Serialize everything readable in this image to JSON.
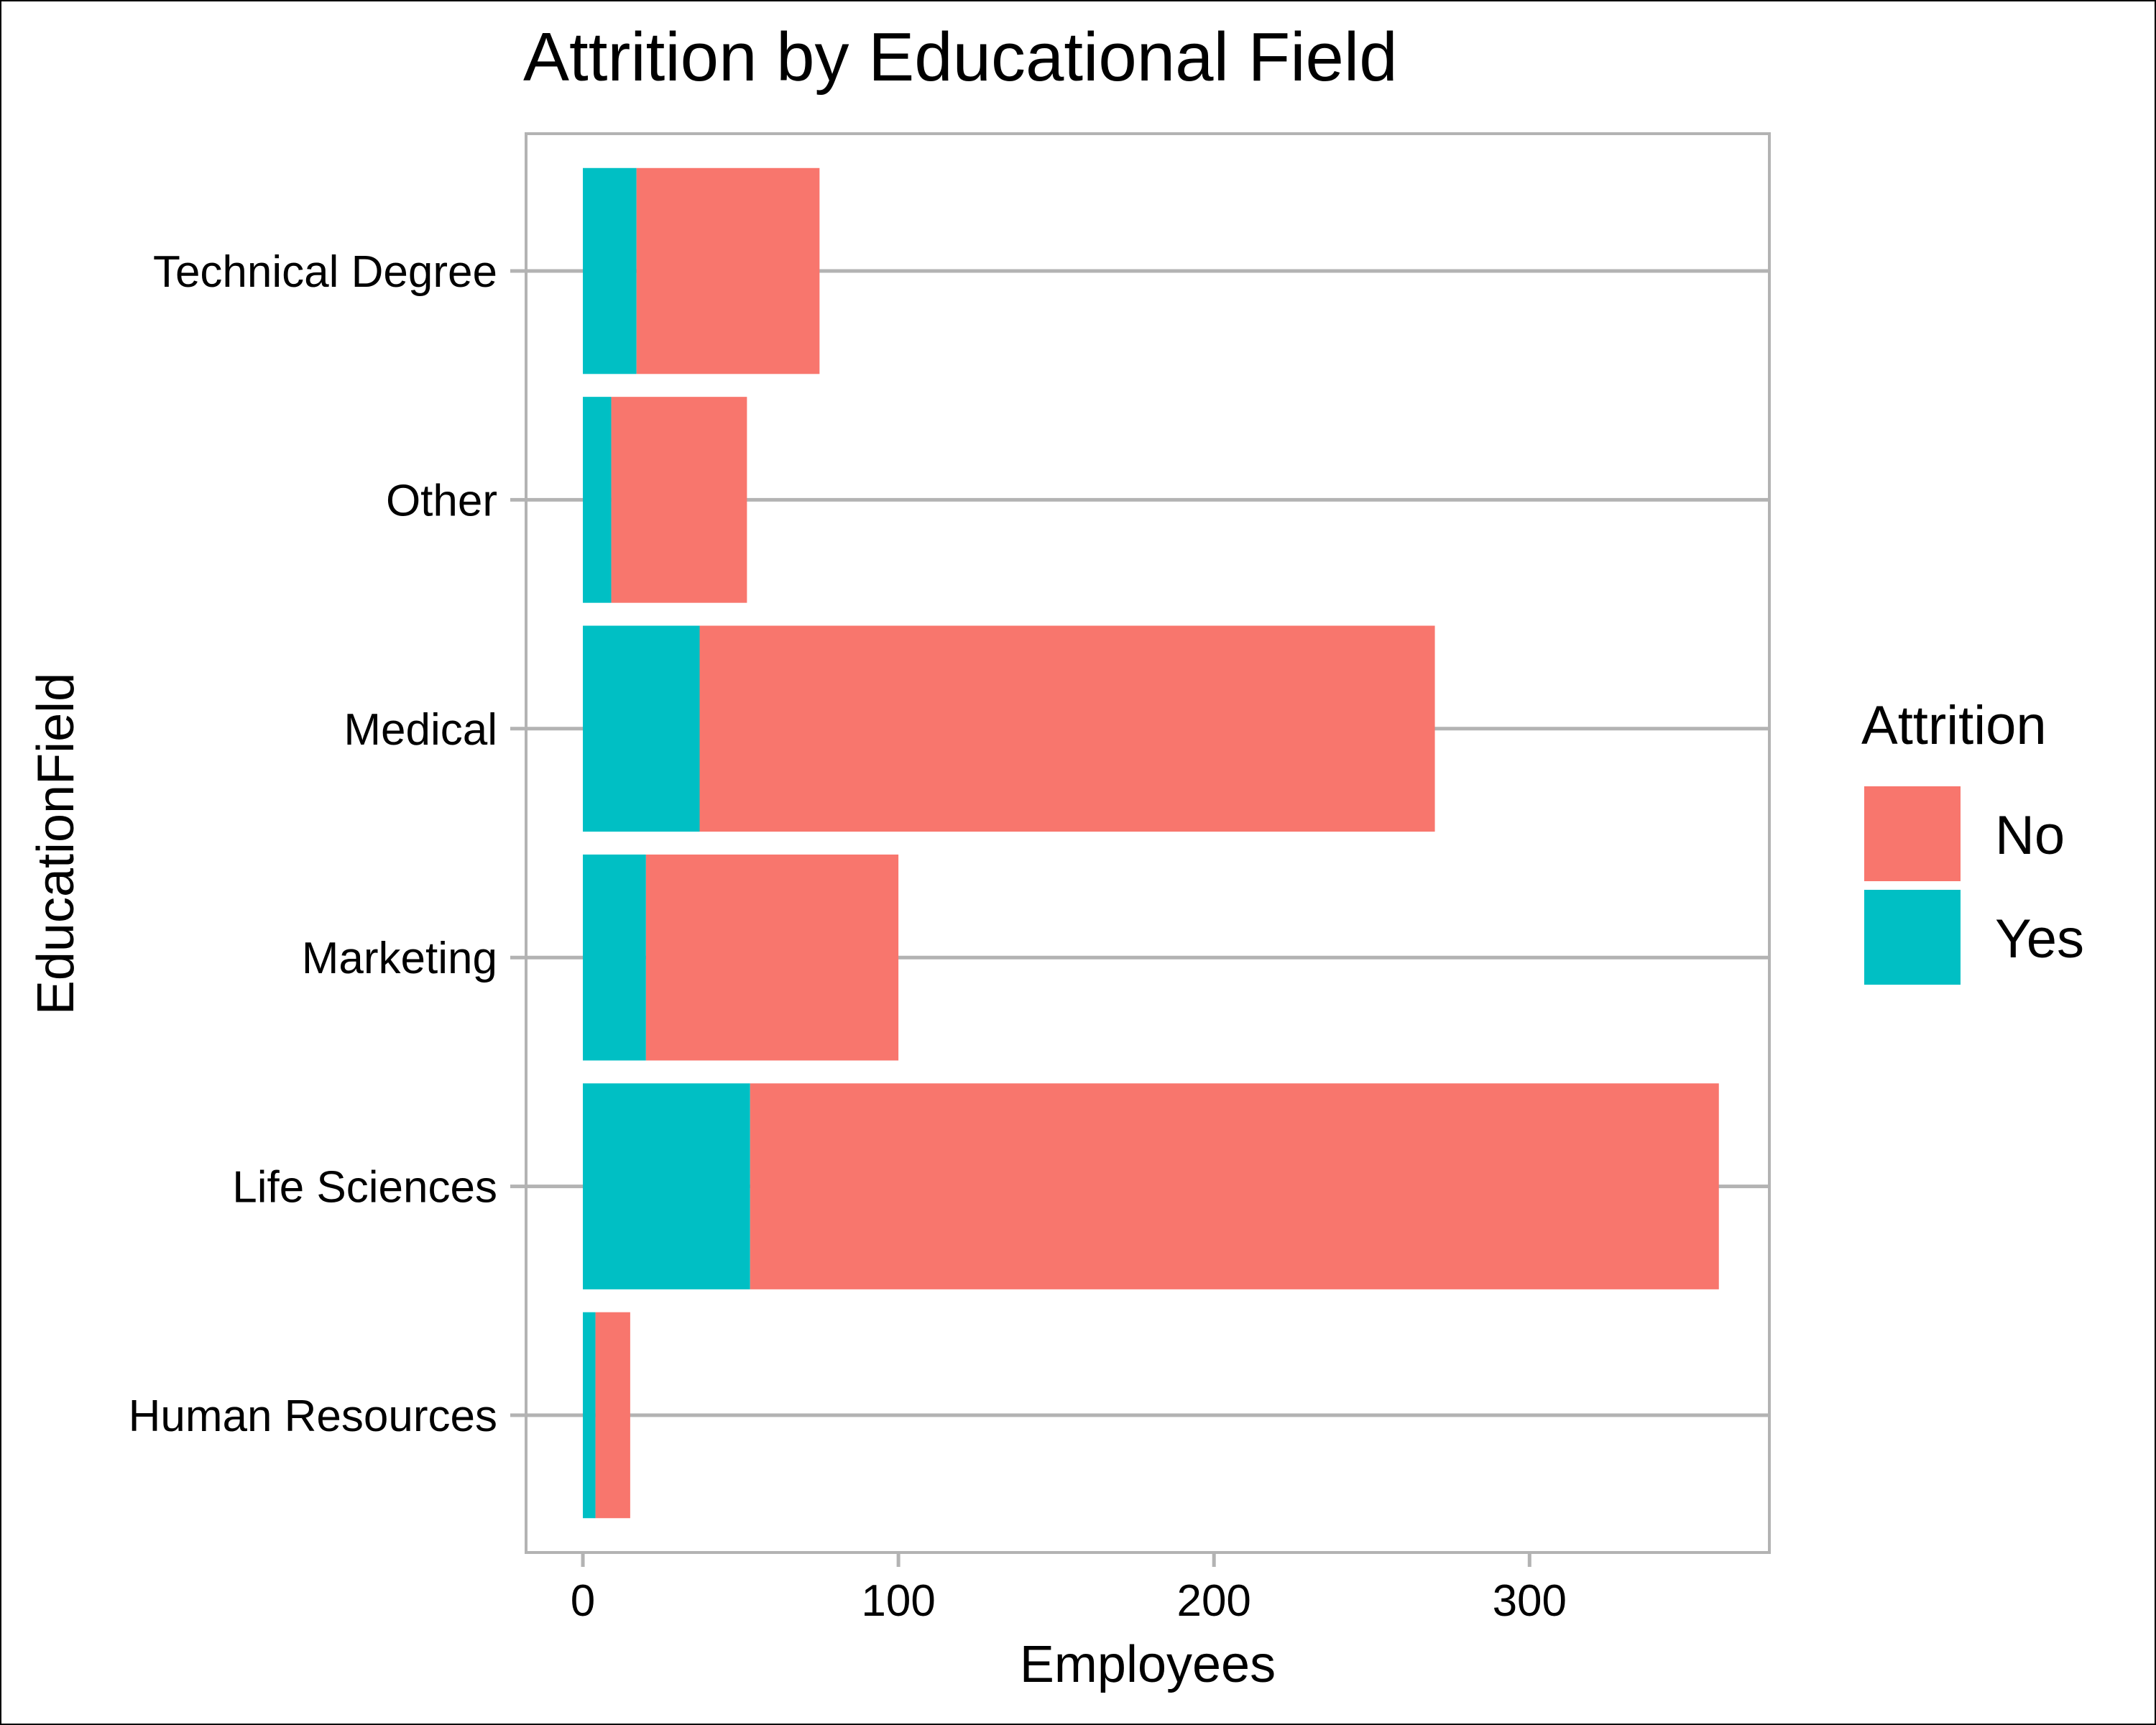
{
  "chart_data": {
    "type": "bar",
    "orientation": "horizontal",
    "stacked": true,
    "title": "Attrition by Educational Field",
    "xlabel": "Employees",
    "ylabel": "EducationField",
    "categories": [
      "Human Resources",
      "Life Sciences",
      "Marketing",
      "Medical",
      "Other",
      "Technical Degree"
    ],
    "series": [
      {
        "name": "Yes",
        "values": [
          4,
          53,
          20,
          37,
          9,
          17
        ],
        "color": "#00BFC4"
      },
      {
        "name": "No",
        "values": [
          11,
          307,
          80,
          233,
          43,
          58
        ],
        "color": "#F8766D"
      }
    ],
    "xlim": [
      -18,
      376
    ],
    "xticks": [
      0,
      100,
      200,
      300
    ],
    "xtick_labels": [
      "0",
      "100",
      "200",
      "300"
    ],
    "grid": "horizontal major lines",
    "legend": {
      "title": "Attrition",
      "position": "right",
      "items": [
        {
          "label": "No",
          "color": "#F8766D"
        },
        {
          "label": "Yes",
          "color": "#00BFC4"
        }
      ]
    }
  }
}
